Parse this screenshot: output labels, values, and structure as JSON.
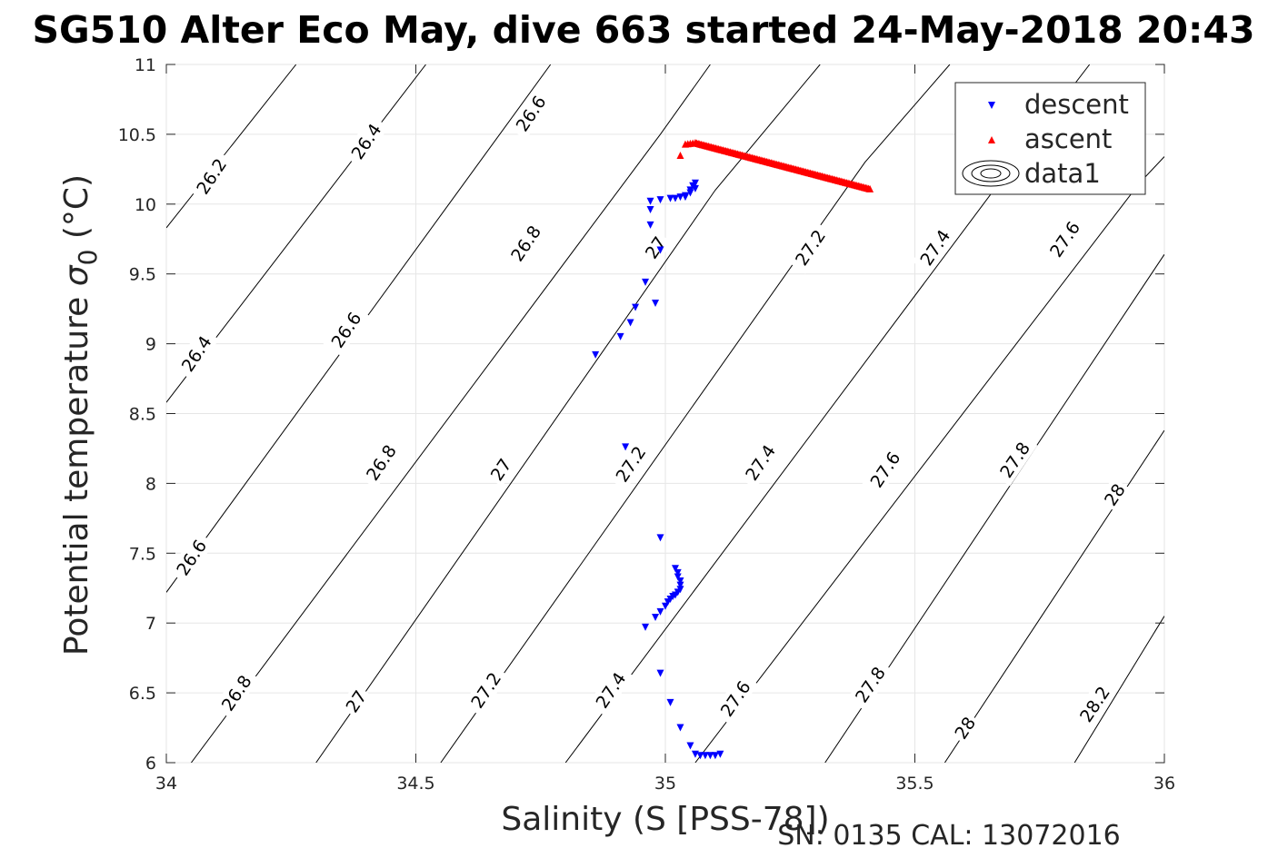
{
  "chart_data": {
    "type": "scatter",
    "title": "SG510 Alter Eco May, dive 663 started 24-May-2018 20:43",
    "xlabel": "Salinity (S [PSS-78])",
    "ylabel_main": "Potential temperature ",
    "ylabel_sigma": "σ",
    "ylabel_sub": "0",
    "ylabel_unit": " (°C)",
    "footer": "SN: 0135  CAL: 13072016",
    "xlim": [
      34,
      36
    ],
    "ylim": [
      6,
      11
    ],
    "xticks": [
      34,
      34.5,
      35,
      35.5,
      36
    ],
    "xtick_labels": [
      "34",
      "34.5",
      "35",
      "35.5",
      "36"
    ],
    "yticks": [
      6,
      6.5,
      7,
      7.5,
      8,
      8.5,
      9,
      9.5,
      10,
      10.5,
      11
    ],
    "ytick_labels": [
      "6",
      "6.5",
      "7",
      "7.5",
      "8",
      "8.5",
      "9",
      "9.5",
      "10",
      "10.5",
      "11"
    ],
    "grid": true,
    "legend_position": "top-right",
    "legend": [
      {
        "label": "descent",
        "marker": "triangle-down",
        "color": "#0000ff"
      },
      {
        "label": "ascent",
        "marker": "triangle-up",
        "color": "#ff0000"
      },
      {
        "label": "data1",
        "marker": "contour",
        "color": "#000000"
      }
    ],
    "contours": [
      {
        "label": "26.2",
        "points": [
          [
            34,
            9.83
          ],
          [
            34.26,
            11
          ]
        ]
      },
      {
        "label": "26.4",
        "points": [
          [
            34,
            8.58
          ],
          [
            34.52,
            11
          ]
        ]
      },
      {
        "label": "26.6",
        "points": [
          [
            34,
            7.22
          ],
          [
            34.77,
            11
          ]
        ]
      },
      {
        "label": "26.8",
        "points": [
          [
            34.05,
            6
          ],
          [
            34.99,
            10.5
          ],
          [
            35.09,
            11
          ]
        ]
      },
      {
        "label": "27",
        "points": [
          [
            34.3,
            6
          ],
          [
            35.1,
            10.1
          ],
          [
            35.31,
            11
          ]
        ]
      },
      {
        "label": "27.2",
        "points": [
          [
            34.55,
            6
          ],
          [
            35.4,
            10.3
          ],
          [
            35.57,
            11
          ]
        ]
      },
      {
        "label": "27.4",
        "points": [
          [
            34.8,
            6
          ],
          [
            35.7,
            10.3
          ],
          [
            35.85,
            11
          ]
        ]
      },
      {
        "label": "27.6",
        "points": [
          [
            35.06,
            6
          ],
          [
            35.95,
            10.15
          ],
          [
            36,
            10.34
          ]
        ]
      },
      {
        "label": "27.8",
        "points": [
          [
            35.32,
            6
          ],
          [
            36,
            9.64
          ]
        ]
      },
      {
        "label": "28",
        "points": [
          [
            35.56,
            6
          ],
          [
            36,
            8.38
          ]
        ]
      },
      {
        "label": "28.2",
        "points": [
          [
            35.82,
            6
          ],
          [
            36,
            7.05
          ]
        ]
      }
    ],
    "contour_labels": [
      {
        "text": "26.2",
        "x": 34.09,
        "y": 10.2
      },
      {
        "text": "26.4",
        "x": 34.4,
        "y": 10.45
      },
      {
        "text": "26.6",
        "x": 34.73,
        "y": 10.65
      },
      {
        "text": "26.4",
        "x": 34.06,
        "y": 8.93
      },
      {
        "text": "26.6",
        "x": 34.36,
        "y": 9.1
      },
      {
        "text": "26.8",
        "x": 34.72,
        "y": 9.72
      },
      {
        "text": "27",
        "x": 34.98,
        "y": 9.69
      },
      {
        "text": "27.2",
        "x": 35.29,
        "y": 9.69
      },
      {
        "text": "27.4",
        "x": 35.54,
        "y": 9.69
      },
      {
        "text": "27.6",
        "x": 35.8,
        "y": 9.75
      },
      {
        "text": "26.6",
        "x": 34.05,
        "y": 7.47
      },
      {
        "text": "26.8",
        "x": 34.43,
        "y": 8.15
      },
      {
        "text": "27",
        "x": 34.67,
        "y": 8.1
      },
      {
        "text": "27.2",
        "x": 34.93,
        "y": 8.14
      },
      {
        "text": "27.4",
        "x": 35.19,
        "y": 8.15
      },
      {
        "text": "27.6",
        "x": 35.44,
        "y": 8.1
      },
      {
        "text": "27.8",
        "x": 35.7,
        "y": 8.17
      },
      {
        "text": "28",
        "x": 35.9,
        "y": 7.92
      },
      {
        "text": "26.8",
        "x": 34.14,
        "y": 6.5
      },
      {
        "text": "27",
        "x": 34.38,
        "y": 6.44
      },
      {
        "text": "27.2",
        "x": 34.64,
        "y": 6.52
      },
      {
        "text": "27.4",
        "x": 34.89,
        "y": 6.52
      },
      {
        "text": "27.6",
        "x": 35.14,
        "y": 6.46
      },
      {
        "text": "27.8",
        "x": 35.41,
        "y": 6.56
      },
      {
        "text": "28",
        "x": 35.6,
        "y": 6.25
      },
      {
        "text": "28.2",
        "x": 35.86,
        "y": 6.42
      }
    ],
    "series": [
      {
        "name": "descent",
        "marker": "triangle-down",
        "color": "#0000ff",
        "x": [
          34.86,
          34.91,
          34.93,
          34.94,
          34.96,
          34.98,
          34.99,
          34.97,
          34.97,
          34.97,
          34.99,
          35.01,
          35.02,
          35.03,
          35.04,
          35.04,
          35.05,
          35.05,
          35.06,
          35.055,
          35.06,
          34.92,
          34.99,
          35.02,
          35.025,
          35.025,
          35.03,
          35.03,
          35.03,
          35.025,
          35.02,
          35.015,
          35.01,
          35.005,
          35.0,
          34.99,
          34.98,
          34.96,
          34.99,
          35.01,
          35.03,
          35.05,
          35.06,
          35.07,
          35.08,
          35.09,
          35.1,
          35.11
        ],
        "y": [
          8.92,
          9.05,
          9.15,
          9.26,
          9.44,
          9.29,
          9.67,
          9.85,
          9.96,
          10.02,
          10.03,
          10.04,
          10.04,
          10.05,
          10.05,
          10.06,
          10.08,
          10.1,
          10.11,
          10.13,
          10.15,
          8.26,
          7.61,
          7.39,
          7.36,
          7.33,
          7.3,
          7.27,
          7.24,
          7.22,
          7.2,
          7.19,
          7.17,
          7.15,
          7.12,
          7.08,
          7.04,
          6.97,
          6.64,
          6.43,
          6.25,
          6.12,
          6.06,
          6.05,
          6.05,
          6.05,
          6.05,
          6.06
        ]
      },
      {
        "name": "ascent",
        "marker": "triangle-up",
        "color": "#ff0000",
        "start": [
          35.03,
          10.35
        ],
        "line": {
          "x0": 35.04,
          "y0": 10.43,
          "x1": 35.41,
          "y1": 10.11,
          "peak_x": 35.06,
          "peak_y": 10.44,
          "count": 120
        }
      }
    ]
  }
}
